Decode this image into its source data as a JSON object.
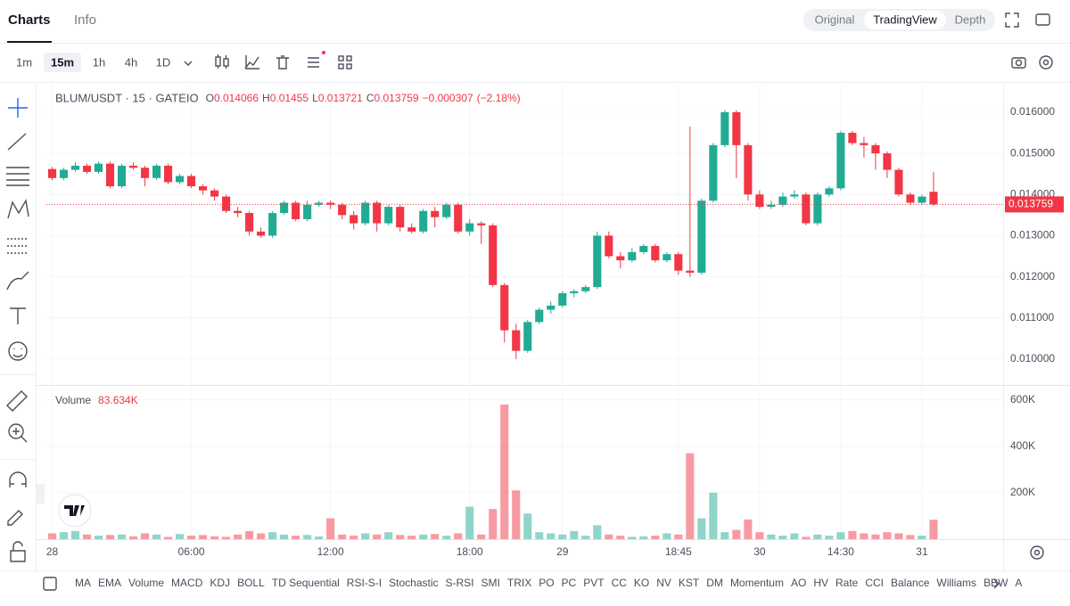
{
  "tabs": [
    "Charts",
    "Info"
  ],
  "view_modes": [
    "Original",
    "TradingView",
    "Depth"
  ],
  "intervals": [
    "1m",
    "15m",
    "1h",
    "4h",
    "1D"
  ],
  "indicators": [
    "MA",
    "EMA",
    "Volume",
    "MACD",
    "KDJ",
    "BOLL",
    "TD Sequential",
    "RSI-S-I",
    "Stochastic",
    "S-RSI",
    "SMI",
    "TRIX",
    "PO",
    "PC",
    "PVT",
    "CC",
    "KO",
    "NV",
    "KST",
    "DM",
    "Momentum",
    "AO",
    "HV",
    "Rate",
    "CCI",
    "Balance",
    "Williams",
    "BBW",
    "A"
  ],
  "chart_data": {
    "type": "candlestick",
    "title": "BLUM/USDT · 15 · GATEIO",
    "ohlc_labels": [
      "O",
      "H",
      "L",
      "C"
    ],
    "change_label": "−0.000307",
    "change_percent_label": "(−2.18%)",
    "up_color": "#22ab94",
    "down_color": "#f23645",
    "grid": true,
    "xlim": [
      -0.5,
      82
    ],
    "xticks": [
      {
        "value": 0,
        "label": "28"
      },
      {
        "value": 12,
        "label": "06:00"
      },
      {
        "value": 24,
        "label": "12:00"
      },
      {
        "value": 36,
        "label": "18:00"
      },
      {
        "value": 44,
        "label": "29"
      },
      {
        "value": 54,
        "label": "18:45"
      },
      {
        "value": 61,
        "label": "30"
      },
      {
        "value": 68,
        "label": "14:30"
      },
      {
        "value": 75,
        "label": "31"
      }
    ],
    "ylim": [
      0.00937,
      0.01667
    ],
    "yticks": [
      {
        "value": 0.01,
        "label": "0.010000"
      },
      {
        "value": 0.011,
        "label": "0.011000"
      },
      {
        "value": 0.012,
        "label": "0.012000"
      },
      {
        "value": 0.013,
        "label": "0.013000"
      },
      {
        "value": 0.014,
        "label": "0.014000"
      },
      {
        "value": 0.015,
        "label": "0.015000"
      },
      {
        "value": 0.016,
        "label": "0.016000"
      }
    ],
    "open": [
      0.01462,
      0.0144,
      0.0146,
      0.0147,
      0.01455,
      0.01475,
      0.0142,
      0.0147,
      0.01465,
      0.0144,
      0.0147,
      0.0143,
      0.01445,
      0.0142,
      0.0141,
      0.01395,
      0.0136,
      0.01355,
      0.0131,
      0.013,
      0.01355,
      0.0138,
      0.0134,
      0.01375,
      0.0138,
      0.01375,
      0.0135,
      0.0133,
      0.0138,
      0.0133,
      0.0137,
      0.0132,
      0.0131,
      0.0136,
      0.01345,
      0.01375,
      0.0131,
      0.0133,
      0.01325,
      0.0118,
      0.0107,
      0.0102,
      0.0109,
      0.0112,
      0.0113,
      0.0116,
      0.01165,
      0.01175,
      0.013,
      0.0125,
      0.0124,
      0.0126,
      0.01275,
      0.0124,
      0.01255,
      0.01215,
      0.0121,
      0.01385,
      0.0152,
      0.016,
      0.0152,
      0.014,
      0.0137,
      0.01375,
      0.01395,
      0.014,
      0.0133,
      0.014,
      0.01415,
      0.0155,
      0.01525,
      0.0152,
      0.015,
      0.0146,
      0.014,
      0.0138,
      0.014066
    ],
    "high": [
      0.01467,
      0.01465,
      0.01478,
      0.01475,
      0.0148,
      0.0148,
      0.01475,
      0.01478,
      0.0147,
      0.01475,
      0.01475,
      0.0145,
      0.0145,
      0.01425,
      0.01415,
      0.014,
      0.0137,
      0.0136,
      0.0132,
      0.0136,
      0.01385,
      0.01385,
      0.01385,
      0.01385,
      0.01385,
      0.0138,
      0.0136,
      0.01385,
      0.01385,
      0.01375,
      0.01375,
      0.0133,
      0.01365,
      0.0137,
      0.0138,
      0.0138,
      0.0134,
      0.01335,
      0.0133,
      0.01185,
      0.01085,
      0.01095,
      0.01125,
      0.0114,
      0.01165,
      0.0117,
      0.0118,
      0.0131,
      0.0131,
      0.0126,
      0.0127,
      0.0128,
      0.0128,
      0.0126,
      0.0126,
      0.01565,
      0.0139,
      0.01525,
      0.01605,
      0.01605,
      0.01525,
      0.0141,
      0.01385,
      0.01405,
      0.0141,
      0.01405,
      0.01405,
      0.0142,
      0.01555,
      0.01555,
      0.0154,
      0.01525,
      0.01505,
      0.01465,
      0.01405,
      0.014,
      0.01455
    ],
    "low": [
      0.01435,
      0.01435,
      0.01455,
      0.0145,
      0.0145,
      0.01415,
      0.01415,
      0.0146,
      0.0142,
      0.01435,
      0.01425,
      0.01425,
      0.01415,
      0.014,
      0.01385,
      0.01355,
      0.01345,
      0.013,
      0.01295,
      0.01295,
      0.0135,
      0.01335,
      0.01335,
      0.0137,
      0.01365,
      0.0134,
      0.01315,
      0.01325,
      0.0131,
      0.01325,
      0.0131,
      0.01305,
      0.01305,
      0.0132,
      0.0134,
      0.01305,
      0.013,
      0.0128,
      0.01175,
      0.0104,
      0.01,
      0.01015,
      0.01085,
      0.0111,
      0.01125,
      0.0115,
      0.0116,
      0.0117,
      0.01245,
      0.0122,
      0.01235,
      0.01255,
      0.01235,
      0.01235,
      0.01205,
      0.012,
      0.01205,
      0.0138,
      0.01515,
      0.0144,
      0.01385,
      0.01365,
      0.01365,
      0.0137,
      0.0139,
      0.01325,
      0.01325,
      0.01395,
      0.0141,
      0.0152,
      0.0149,
      0.0146,
      0.0144,
      0.01395,
      0.01375,
      0.01375,
      0.013721
    ],
    "close": [
      0.0144,
      0.0146,
      0.0147,
      0.01455,
      0.01475,
      0.0142,
      0.0147,
      0.01465,
      0.0144,
      0.0147,
      0.0143,
      0.01445,
      0.0142,
      0.0141,
      0.01395,
      0.0136,
      0.01355,
      0.0131,
      0.013,
      0.01355,
      0.0138,
      0.0134,
      0.01375,
      0.0138,
      0.01375,
      0.0135,
      0.0133,
      0.0138,
      0.0133,
      0.0137,
      0.0132,
      0.0131,
      0.0136,
      0.01345,
      0.01375,
      0.0131,
      0.0133,
      0.01325,
      0.0118,
      0.0107,
      0.0102,
      0.0109,
      0.0112,
      0.0113,
      0.0116,
      0.01165,
      0.01175,
      0.013,
      0.0125,
      0.0124,
      0.0126,
      0.01275,
      0.0124,
      0.01255,
      0.01215,
      0.0121,
      0.01385,
      0.0152,
      0.016,
      0.0152,
      0.014,
      0.0137,
      0.01375,
      0.01395,
      0.014,
      0.0133,
      0.014,
      0.01415,
      0.0155,
      0.01525,
      0.0152,
      0.015,
      0.0146,
      0.014,
      0.0138,
      0.01395,
      0.013759
    ],
    "volume_label": "Volume",
    "volume_value_label": "83.634K",
    "volume": [
      25000,
      30000,
      35000,
      20000,
      15000,
      18000,
      20000,
      12000,
      25000,
      20000,
      10000,
      22000,
      15000,
      18000,
      12000,
      10000,
      20000,
      35000,
      25000,
      30000,
      20000,
      15000,
      18000,
      12000,
      90000,
      20000,
      15000,
      25000,
      20000,
      30000,
      18000,
      15000,
      20000,
      22000,
      15000,
      25000,
      140000,
      20000,
      130000,
      580000,
      210000,
      110000,
      30000,
      25000,
      20000,
      35000,
      15000,
      60000,
      20000,
      15000,
      10000,
      12000,
      15000,
      25000,
      20000,
      370000,
      90000,
      200000,
      30000,
      40000,
      85000,
      30000,
      20000,
      15000,
      25000,
      10000,
      20000,
      15000,
      30000,
      35000,
      25000,
      20000,
      30000,
      25000,
      18000,
      15000,
      83634
    ],
    "vlim": [
      0,
      660000
    ],
    "vticks": [
      {
        "value": 200000,
        "label": "200K"
      },
      {
        "value": 400000,
        "label": "400K"
      },
      {
        "value": 600000,
        "label": "600K"
      }
    ]
  }
}
